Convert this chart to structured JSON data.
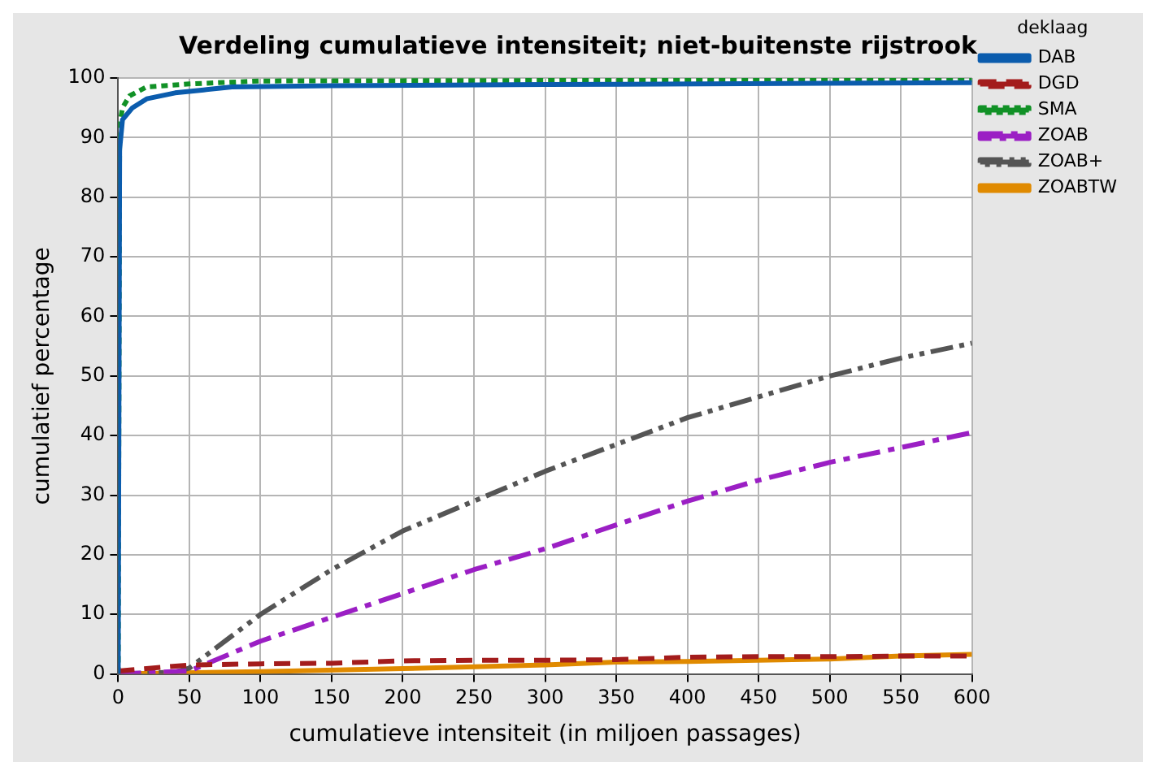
{
  "chart_data": {
    "type": "line",
    "title": "Verdeling cumulatieve intensiteit; niet-buitenste rijstrook",
    "xlabel": "cumulatieve intensiteit (in miljoen passages)",
    "ylabel": "cumulatief percentage",
    "legend_title": "deklaag",
    "legend": "right",
    "grid": true,
    "marker": "none",
    "xlim": [
      0,
      600
    ],
    "xticks": [
      0,
      50,
      100,
      150,
      200,
      250,
      300,
      350,
      400,
      450,
      500,
      550,
      600
    ],
    "ylim": [
      0,
      100
    ],
    "yticks": [
      0,
      10,
      20,
      30,
      40,
      50,
      60,
      70,
      80,
      90,
      100
    ],
    "series": [
      {
        "name": "DAB",
        "color": "#0b5cad",
        "line_style": "solid",
        "x": [
          0,
          1,
          3,
          10,
          20,
          40,
          60,
          80,
          150,
          300,
          600
        ],
        "values": [
          0,
          88,
          93,
          95,
          96.5,
          97.5,
          98,
          98.5,
          98.7,
          98.9,
          99.2
        ]
      },
      {
        "name": "DGD",
        "color": "#a31c1c",
        "line_style": "dashed",
        "x": [
          0,
          50,
          100,
          150,
          200,
          250,
          300,
          350,
          400,
          450,
          500,
          550,
          600
        ],
        "values": [
          0.5,
          1.5,
          1.7,
          1.8,
          2.2,
          2.3,
          2.3,
          2.4,
          2.8,
          2.9,
          2.9,
          3,
          3
        ]
      },
      {
        "name": "SMA",
        "color": "#119126",
        "line_style": "dotted",
        "x": [
          0,
          1,
          3,
          8,
          20,
          50,
          100,
          600
        ],
        "values": [
          0,
          92,
          95,
          97,
          98.5,
          99,
          99.5,
          99.7
        ]
      },
      {
        "name": "ZOAB",
        "color": "#9b1fc4",
        "line_style": "dashdot",
        "x": [
          0,
          50,
          100,
          150,
          200,
          250,
          300,
          350,
          400,
          450,
          500,
          550,
          600
        ],
        "values": [
          0,
          0.5,
          5.5,
          9.5,
          13.5,
          17.5,
          21,
          25,
          29,
          32.5,
          35.5,
          38,
          40.5
        ]
      },
      {
        "name": "ZOAB+",
        "color": "#555555",
        "line_style": "dashdotdot",
        "x": [
          0,
          40,
          50,
          100,
          150,
          200,
          250,
          300,
          350,
          400,
          450,
          500,
          550,
          600
        ],
        "values": [
          0,
          0.3,
          1,
          10,
          17.5,
          24,
          29,
          34,
          38.5,
          43,
          46.5,
          50,
          53,
          55.5
        ]
      },
      {
        "name": "ZOABTW",
        "color": "#e08a00",
        "line_style": "solid",
        "x": [
          0,
          100,
          200,
          300,
          350,
          400,
          500,
          550,
          600
        ],
        "values": [
          0,
          0.4,
          0.9,
          1.5,
          2,
          2.1,
          2.5,
          3,
          3.3
        ]
      }
    ]
  }
}
